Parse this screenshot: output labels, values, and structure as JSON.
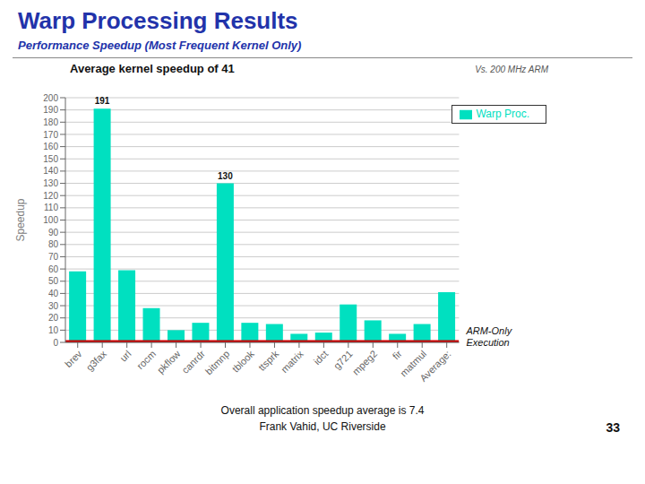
{
  "chart_data": {
    "type": "bar",
    "title": "Warp Processing Results",
    "subtitle": "Performance Speedup (Most Frequent Kernel Only)",
    "ylabel": "Speedup",
    "categories": [
      "brev",
      "g3fax",
      "url",
      "rocm",
      "pkflow",
      "canrdr",
      "bitmnp",
      "tblook",
      "ttsprk",
      "matrix",
      "idct",
      "g721",
      "mpeg2",
      "fir",
      "matmul",
      "Average:"
    ],
    "series": [
      {
        "name": "Warp Proc.",
        "color": "#00E0C0",
        "values": [
          58,
          191,
          59,
          28,
          10,
          16,
          130,
          16,
          15,
          7,
          8,
          31,
          18,
          7,
          15,
          41
        ]
      }
    ],
    "ylim": [
      0,
      200
    ],
    "yticks": [
      0,
      10,
      20,
      30,
      40,
      50,
      60,
      70,
      80,
      90,
      100,
      110,
      120,
      130,
      140,
      150,
      160,
      170,
      180,
      190,
      200
    ],
    "grid": true,
    "legend": "upper right",
    "reference_line": {
      "y": 1,
      "color": "#CC0000",
      "label": "ARM-Only\nExecution"
    },
    "annotations": [
      {
        "text": "Vs. 200 MHz ARM"
      },
      {
        "text": "Average kernel speedup of 41"
      },
      {
        "x": "g3fax",
        "y": 191,
        "text": "191"
      },
      {
        "x": "bitmnp",
        "y": 130,
        "text": "130"
      },
      {
        "text": "Overall application speedup average is 7.4"
      },
      {
        "text": "Frank Vahid, UC Riverside"
      },
      {
        "text": "33"
      }
    ]
  }
}
